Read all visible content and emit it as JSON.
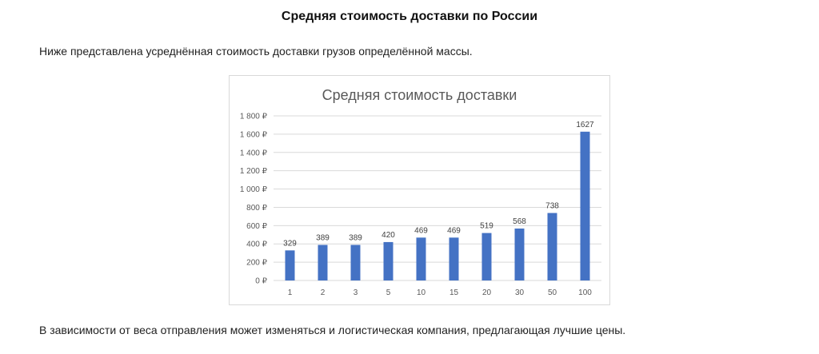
{
  "page": {
    "heading": "Средняя стоимость доставки по России",
    "intro": "Ниже представлена усреднённая стоимость доставки грузов определённой массы.",
    "outro": "В зависимости от веса отправления может изменяться и логистическая компания, предлагающая лучшие цены."
  },
  "chart_data": {
    "type": "bar",
    "title": "Средняя стоимость доставки",
    "xlabel": "",
    "ylabel": "",
    "categories": [
      "1",
      "2",
      "3",
      "5",
      "10",
      "15",
      "20",
      "30",
      "50",
      "100"
    ],
    "values": [
      329,
      389,
      389,
      420,
      469,
      469,
      519,
      568,
      738,
      1627
    ],
    "ylim": [
      0,
      1800
    ],
    "y_ticks": [
      "0 ₽",
      "200 ₽",
      "400 ₽",
      "600 ₽",
      "800 ₽",
      "1 000 ₽",
      "1 200 ₽",
      "1 400 ₽",
      "1 600 ₽",
      "1 800 ₽"
    ],
    "y_tick_values": [
      0,
      200,
      400,
      600,
      800,
      1000,
      1200,
      1400,
      1600,
      1800
    ],
    "grid": true,
    "legend": "none",
    "bar_color": "#4472c4",
    "grid_color": "#d9d9d9"
  }
}
